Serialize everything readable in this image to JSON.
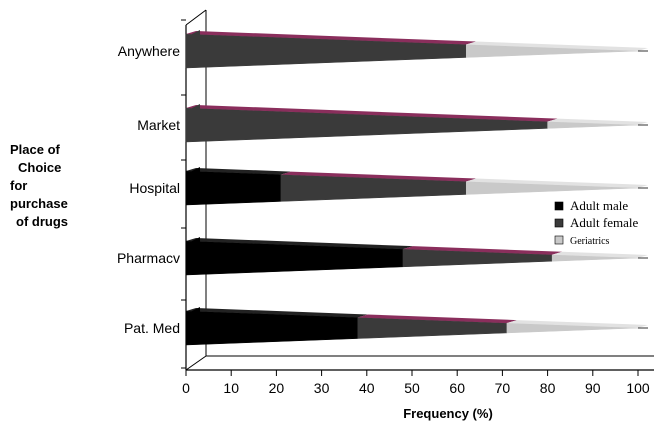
{
  "chart_data": {
    "type": "bar",
    "orientation": "horizontal",
    "stacked": true,
    "style": "3d-cone",
    "title": "",
    "ylabel_lines": [
      "Place of",
      "Choice",
      "for",
      "purchase",
      "of drugs"
    ],
    "xlabel": "Frequency (%)",
    "xlim": [
      0,
      100
    ],
    "xticks": [
      0,
      10,
      20,
      30,
      40,
      50,
      60,
      70,
      80,
      90,
      100
    ],
    "categories": [
      "Anywhere",
      "Market",
      "Hospital",
      "Pharmacv",
      "Pat. Med"
    ],
    "series": [
      {
        "name": "Adult male",
        "color": "#000000",
        "values": [
          0,
          0,
          21,
          48,
          38
        ]
      },
      {
        "name": "Adult female",
        "color": "#3a3a3a",
        "values": [
          62,
          80,
          41,
          33,
          33
        ]
      },
      {
        "name": "Geriatrics",
        "color": "#c9c9c9",
        "values": [
          38,
          20,
          38,
          19,
          29
        ]
      }
    ],
    "accent_color": "#8a2e5c",
    "legend": {
      "position": "right",
      "entries": [
        "Adult male",
        "Adult female",
        "Geriatrics"
      ]
    },
    "grid": false
  }
}
